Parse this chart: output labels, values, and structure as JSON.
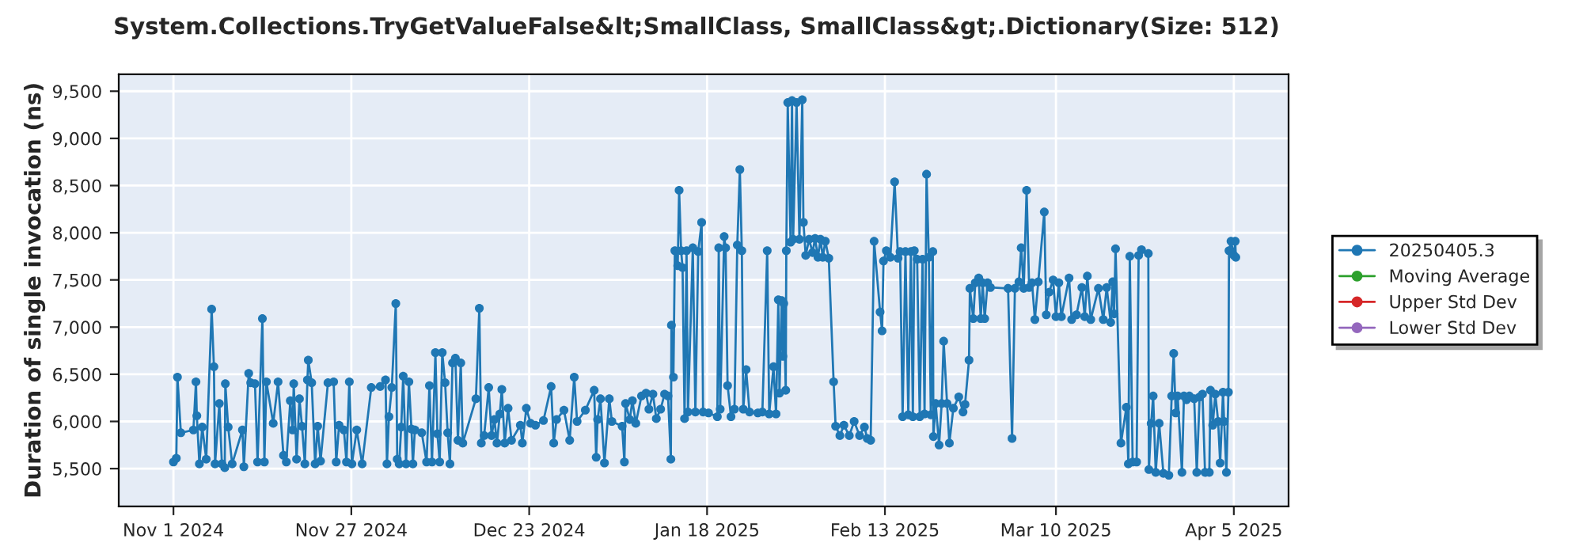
{
  "chart_data": {
    "type": "line",
    "title": "System.Collections.TryGetValueFalse&lt;SmallClass, SmallClass&gt;.Dictionary(Size: 512)",
    "ylabel": "Duration of single invocation (ns)",
    "x": [
      "2024-11-01T00:00",
      "2024-11-01T10:00",
      "2024-11-01T14:00",
      "2024-11-02T02:00",
      "2024-11-03T22:00",
      "2024-11-04T07:00",
      "2024-11-04T10:00",
      "2024-11-04T19:00",
      "2024-11-05T05:00",
      "2024-11-05T19:00",
      "2024-11-06T14:00",
      "2024-11-06T22:00",
      "2024-11-07T02:00",
      "2024-11-07T17:00",
      "2024-11-08T02:00",
      "2024-11-08T12:00",
      "2024-11-08T14:00",
      "2024-11-09T00:00",
      "2024-11-09T14:00",
      "2024-11-11T02:00",
      "2024-11-11T07:00",
      "2024-11-12T00:00",
      "2024-11-12T07:00",
      "2024-11-12T22:00",
      "2024-11-13T07:00",
      "2024-11-14T00:00",
      "2024-11-14T07:00",
      "2024-11-14T14:00",
      "2024-11-15T14:00",
      "2024-11-16T07:00",
      "2024-11-17T02:00",
      "2024-11-17T12:00",
      "2024-11-18T02:00",
      "2024-11-18T10:00",
      "2024-11-18T14:00",
      "2024-11-19T00:00",
      "2024-11-19T10:00",
      "2024-11-19T19:00",
      "2024-11-20T05:00",
      "2024-11-20T14:00",
      "2024-11-20T17:00",
      "2024-11-21T05:00",
      "2024-11-21T17:00",
      "2024-11-22T02:00",
      "2024-11-22T12:00",
      "2024-11-23T14:00",
      "2024-11-24T10:00",
      "2024-11-24T19:00",
      "2024-11-25T05:00",
      "2024-11-25T22:00",
      "2024-11-26T07:00",
      "2024-11-26T17:00",
      "2024-11-27T02:00",
      "2024-11-27T19:00",
      "2024-11-28T14:00",
      "2024-11-29T22:00",
      "2024-12-01T05:00",
      "2024-12-02T00:00",
      "2024-12-02T05:00",
      "2024-12-02T12:00",
      "2024-12-02T22:00",
      "2024-12-03T12:00",
      "2024-12-03T17:00",
      "2024-12-04T00:00",
      "2024-12-04T07:00",
      "2024-12-04T14:00",
      "2024-12-05T00:00",
      "2024-12-05T10:00",
      "2024-12-05T19:00",
      "2024-12-06T00:00",
      "2024-12-06T07:00",
      "2024-12-07T07:00",
      "2024-12-08T00:00",
      "2024-12-08T10:00",
      "2024-12-08T19:00",
      "2024-12-09T07:00",
      "2024-12-09T14:00",
      "2024-12-09T22:00",
      "2024-12-10T07:00",
      "2024-12-10T17:00",
      "2024-12-11T02:00",
      "2024-12-11T10:00",
      "2024-12-11T19:00",
      "2024-12-12T05:00",
      "2024-12-12T14:00",
      "2024-12-13T00:00",
      "2024-12-13T07:00",
      "2024-12-15T05:00",
      "2024-12-15T17:00",
      "2024-12-16T00:00",
      "2024-12-16T10:00",
      "2024-12-17T02:00",
      "2024-12-17T12:00",
      "2024-12-17T22:00",
      "2024-12-18T07:00",
      "2024-12-18T17:00",
      "2024-12-19T00:00",
      "2024-12-19T10:00",
      "2024-12-19T22:00",
      "2024-12-20T10:00",
      "2024-12-21T17:00",
      "2024-12-22T00:00",
      "2024-12-22T14:00",
      "2024-12-23T05:00",
      "2024-12-23T22:00",
      "2024-12-25T02:00",
      "2024-12-26T05:00",
      "2024-12-26T14:00",
      "2024-12-27T00:00",
      "2024-12-28T02:00",
      "2024-12-28T22:00",
      "2024-12-29T14:00",
      "2024-12-30T00:00",
      "2024-12-31T05:00",
      "2025-01-01T12:00",
      "2025-01-01T19:00",
      "2025-01-02T00:00",
      "2025-01-02T10:00",
      "2025-01-03T00:00",
      "2025-01-03T17:00",
      "2025-01-04T02:00",
      "2025-01-05T14:00",
      "2025-01-05T22:00",
      "2025-01-06T02:00",
      "2025-01-06T17:00",
      "2025-01-07T02:00",
      "2025-01-07T14:00",
      "2025-01-08T10:00",
      "2025-01-09T02:00",
      "2025-01-09T12:00",
      "2025-01-10T02:00",
      "2025-01-10T14:00",
      "2025-01-11T05:00",
      "2025-01-11T19:00",
      "2025-01-12T07:00",
      "2025-01-12T17:00",
      "2025-01-12T19:00",
      "2025-01-13T02:00",
      "2025-01-13T07:00",
      "2025-01-13T17:00",
      "2025-01-13T22:00",
      "2025-01-14T05:00",
      "2025-01-14T10:00",
      "2025-01-14T17:00",
      "2025-01-15T00:00",
      "2025-01-15T05:00",
      "2025-01-15T22:00",
      "2025-01-16T07:00",
      "2025-01-16T17:00",
      "2025-01-17T05:00",
      "2025-01-17T10:00",
      "2025-01-18T05:00",
      "2025-01-19T12:00",
      "2025-01-19T17:00",
      "2025-01-19T22:00",
      "2025-01-20T12:00",
      "2025-01-20T17:00",
      "2025-01-21T00:00",
      "2025-01-21T12:00",
      "2025-01-22T00:00",
      "2025-01-22T10:00",
      "2025-01-22T19:00",
      "2025-01-23T02:00",
      "2025-01-23T07:00",
      "2025-01-23T17:00",
      "2025-01-24T05:00",
      "2025-01-25T10:00",
      "2025-01-26T02:00",
      "2025-01-26T19:00",
      "2025-01-27T02:00",
      "2025-01-27T17:00",
      "2025-01-28T02:00",
      "2025-01-28T10:00",
      "2025-01-28T14:00",
      "2025-01-28T22:00",
      "2025-01-29T02:00",
      "2025-01-29T05:00",
      "2025-01-29T12:00",
      "2025-01-29T14:00",
      "2025-01-29T19:00",
      "2025-01-30T05:00",
      "2025-01-30T10:00",
      "2025-01-30T14:00",
      "2025-01-31T02:00",
      "2025-01-31T12:00",
      "2025-01-31T22:00",
      "2025-02-01T02:00",
      "2025-02-01T10:00",
      "2025-02-01T22:00",
      "2025-02-02T10:00",
      "2025-02-02T19:00",
      "2025-02-03T05:00",
      "2025-02-03T14:00",
      "2025-02-03T22:00",
      "2025-02-04T07:00",
      "2025-02-04T19:00",
      "2025-02-05T12:00",
      "2025-02-05T19:00",
      "2025-02-06T10:00",
      "2025-02-07T00:00",
      "2025-02-07T19:00",
      "2025-02-08T12:00",
      "2025-02-09T07:00",
      "2025-02-10T00:00",
      "2025-02-10T10:00",
      "2025-02-10T22:00",
      "2025-02-11T10:00",
      "2025-02-12T07:00",
      "2025-02-12T14:00",
      "2025-02-12T19:00",
      "2025-02-13T05:00",
      "2025-02-13T19:00",
      "2025-02-14T10:00",
      "2025-02-14T22:00",
      "2025-02-15T05:00",
      "2025-02-15T14:00",
      "2025-02-16T00:00",
      "2025-02-16T10:00",
      "2025-02-16T19:00",
      "2025-02-17T02:00",
      "2025-02-17T07:00",
      "2025-02-17T17:00",
      "2025-02-18T02:00",
      "2025-02-18T12:00",
      "2025-02-18T19:00",
      "2025-02-19T02:00",
      "2025-02-19T10:00",
      "2025-02-19T17:00",
      "2025-02-20T00:00",
      "2025-02-20T02:00",
      "2025-02-20T10:00",
      "2025-02-20T22:00",
      "2025-02-21T07:00",
      "2025-02-21T14:00",
      "2025-02-22T02:00",
      "2025-02-22T10:00",
      "2025-02-23T00:00",
      "2025-02-23T19:00",
      "2025-02-24T10:00",
      "2025-02-24T17:00",
      "2025-02-25T07:00",
      "2025-02-25T10:00",
      "2025-02-25T22:00",
      "2025-02-26T05:00",
      "2025-02-26T17:00",
      "2025-02-27T00:00",
      "2025-02-27T07:00",
      "2025-02-27T14:00",
      "2025-02-28T00:00",
      "2025-02-28T10:00",
      "2025-03-03T00:00",
      "2025-03-03T14:00",
      "2025-03-04T00:00",
      "2025-03-04T14:00",
      "2025-03-04T22:00",
      "2025-03-05T07:00",
      "2025-03-05T17:00",
      "2025-03-06T02:00",
      "2025-03-06T12:00",
      "2025-03-06T22:00",
      "2025-03-07T10:00",
      "2025-03-08T07:00",
      "2025-03-08T14:00",
      "2025-03-09T00:00",
      "2025-03-09T14:00",
      "2025-03-10T00:00",
      "2025-03-10T10:00",
      "2025-03-10T19:00",
      "2025-03-11T22:00",
      "2025-03-12T07:00",
      "2025-03-13T00:00",
      "2025-03-13T19:00",
      "2025-03-14T05:00",
      "2025-03-14T14:00",
      "2025-03-15T02:00",
      "2025-03-16T05:00",
      "2025-03-16T22:00",
      "2025-03-17T10:00",
      "2025-03-18T00:00",
      "2025-03-18T07:00",
      "2025-03-18T12:00",
      "2025-03-18T17:00",
      "2025-03-19T12:00",
      "2025-03-20T07:00",
      "2025-03-20T14:00",
      "2025-03-20T19:00",
      "2025-03-21T05:00",
      "2025-03-21T19:00",
      "2025-03-22T02:00",
      "2025-03-22T12:00",
      "2025-03-23T12:00",
      "2025-03-23T14:00",
      "2025-03-23T22:00",
      "2025-03-24T05:00",
      "2025-03-24T14:00",
      "2025-03-25T02:00",
      "2025-03-25T17:00",
      "2025-03-26T12:00",
      "2025-03-26T22:00",
      "2025-03-27T05:00",
      "2025-03-27T12:00",
      "2025-03-27T19:00",
      "2025-03-28T10:00",
      "2025-03-28T17:00",
      "2025-03-29T02:00",
      "2025-03-29T12:00",
      "2025-03-30T05:00",
      "2025-03-30T14:00",
      "2025-03-31T00:00",
      "2025-03-31T10:00",
      "2025-03-31T19:00",
      "2025-04-01T10:00",
      "2025-04-01T14:00",
      "2025-04-01T22:00",
      "2025-04-02T07:00",
      "2025-04-02T17:00",
      "2025-04-03T00:00",
      "2025-04-03T10:00",
      "2025-04-03T14:00",
      "2025-04-03T22:00",
      "2025-04-04T05:00",
      "2025-04-04T07:00",
      "2025-04-04T14:00",
      "2025-04-05T00:00",
      "2025-04-05T05:00",
      "2025-04-05T07:00"
    ],
    "series": [
      {
        "name": "20250405.3",
        "color": "#1f77b4",
        "values": [
          5570,
          5610,
          6470,
          5880,
          5910,
          6420,
          6060,
          5550,
          5940,
          5600,
          7190,
          6580,
          5550,
          6190,
          5550,
          5510,
          6400,
          5940,
          5550,
          5910,
          5520,
          6510,
          6410,
          6400,
          5570,
          7090,
          5570,
          6420,
          5980,
          6420,
          5640,
          5570,
          6220,
          5910,
          6400,
          5600,
          6240,
          5950,
          5550,
          6440,
          6650,
          6410,
          5550,
          5950,
          5580,
          6410,
          6420,
          5570,
          5960,
          5910,
          5570,
          6420,
          5550,
          5910,
          5550,
          6360,
          6370,
          6440,
          5550,
          6050,
          6360,
          7250,
          5600,
          5550,
          5940,
          6480,
          5550,
          6420,
          5920,
          5550,
          5910,
          5880,
          5570,
          6380,
          5570,
          6730,
          5870,
          5570,
          6730,
          6410,
          5880,
          5550,
          6620,
          6670,
          5800,
          6620,
          5770,
          6240,
          7200,
          5770,
          5850,
          6360,
          5850,
          6020,
          5770,
          6080,
          6340,
          5770,
          6140,
          5800,
          5960,
          5770,
          6140,
          5980,
          5960,
          6010,
          6370,
          5770,
          6020,
          6120,
          5800,
          6470,
          6000,
          6120,
          6330,
          5620,
          6020,
          6240,
          5560,
          6240,
          6000,
          5950,
          5570,
          6190,
          6020,
          6220,
          5980,
          6270,
          6300,
          6130,
          6290,
          6030,
          6130,
          6290,
          6270,
          5600,
          7020,
          6470,
          7810,
          7650,
          8450,
          7810,
          7630,
          6030,
          7810,
          6100,
          7840,
          6100,
          7800,
          8110,
          6100,
          6090,
          6050,
          7840,
          6130,
          7960,
          7840,
          6380,
          6050,
          6130,
          7870,
          8670,
          7810,
          6130,
          6550,
          6100,
          6090,
          6100,
          7810,
          6080,
          6580,
          6080,
          7290,
          6300,
          7280,
          6690,
          7250,
          6330,
          7810,
          9380,
          7900,
          9400,
          7930,
          9380,
          7930,
          9410,
          8110,
          7760,
          7930,
          7790,
          7940,
          7740,
          7930,
          7740,
          7910,
          7730,
          6420,
          5950,
          5850,
          5960,
          5850,
          6000,
          5850,
          5940,
          5820,
          5800,
          7910,
          7160,
          6960,
          7700,
          7810,
          7740,
          8540,
          7730,
          7800,
          6050,
          7800,
          6070,
          7800,
          6050,
          7810,
          7720,
          6050,
          7720,
          6080,
          8620,
          7740,
          6070,
          7800,
          5840,
          6190,
          5750,
          6190,
          6850,
          6190,
          5770,
          6140,
          6260,
          6100,
          6180,
          6650,
          7410,
          7090,
          7470,
          7520,
          7090,
          7470,
          7090,
          7470,
          7420,
          7410,
          5820,
          7410,
          7480,
          7840,
          7410,
          8450,
          7420,
          7470,
          7080,
          7480,
          8220,
          7130,
          7370,
          7500,
          7110,
          7470,
          7110,
          7520,
          7080,
          7130,
          7420,
          7110,
          7540,
          7080,
          7410,
          7080,
          7420,
          7050,
          7480,
          7140,
          7830,
          5770,
          6150,
          5550,
          7750,
          5570,
          5570,
          7760,
          7820,
          7780,
          5490,
          5980,
          6270,
          5460,
          5980,
          5450,
          5430,
          6270,
          6720,
          6090,
          6270,
          5460,
          6270,
          6230,
          6270,
          6240,
          5460,
          6260,
          6290,
          5460,
          5460,
          6330,
          5960,
          6290,
          6000,
          5560,
          6310,
          6000,
          5460,
          6310,
          7810,
          7910,
          7760,
          7910,
          7740
        ]
      },
      {
        "name": "Moving Average",
        "color": "#2ca02c",
        "values": [
          null,
          null,
          null,
          null,
          null,
          null,
          null,
          null,
          null,
          null,
          null,
          null,
          null,
          null,
          null,
          null,
          null,
          null,
          null,
          null,
          null,
          null,
          null,
          null,
          null,
          null,
          null,
          null,
          null,
          null,
          null,
          null,
          null,
          null,
          null,
          null,
          null,
          null,
          null,
          null,
          null,
          null,
          null,
          null,
          null,
          null,
          null,
          null,
          null,
          null,
          null,
          null,
          null,
          null,
          null,
          null,
          null,
          null,
          null,
          null,
          null,
          null,
          null,
          null,
          null,
          null,
          null,
          null,
          null,
          null,
          null,
          null,
          null,
          null,
          null,
          null,
          null,
          null,
          null,
          null,
          null,
          null,
          null,
          null,
          null,
          null,
          null,
          null,
          null,
          null,
          null,
          null,
          null,
          null,
          null,
          null,
          null,
          null,
          null,
          null,
          null,
          null,
          null,
          null,
          null,
          null,
          null,
          null,
          null,
          null,
          null,
          null,
          null,
          null,
          null,
          null,
          null,
          null,
          null,
          null,
          null,
          null,
          null,
          null,
          null,
          null,
          null,
          null,
          null,
          null,
          null,
          null,
          null,
          null,
          null,
          null,
          null,
          null,
          null,
          null,
          null,
          null,
          null,
          null,
          null,
          null,
          null,
          null,
          null,
          null,
          null,
          null,
          null,
          null,
          null,
          null,
          null,
          null,
          null,
          null,
          null,
          null,
          null,
          null,
          null,
          null,
          null,
          null,
          null,
          null,
          null,
          null,
          null,
          null,
          null,
          null,
          null,
          null,
          null,
          null,
          null,
          null,
          null,
          null,
          null,
          null,
          null,
          null,
          null,
          null,
          null,
          null,
          null,
          null,
          null,
          null,
          null,
          null,
          null,
          null,
          null,
          null,
          null,
          null,
          null,
          null,
          null,
          null,
          null,
          null,
          null,
          null,
          null,
          null,
          null,
          null,
          null,
          null,
          null,
          null,
          null,
          null,
          null,
          null,
          null,
          null,
          null,
          null,
          null,
          null,
          null,
          null,
          null,
          null,
          null,
          null,
          null,
          null,
          null,
          null,
          null,
          null,
          null,
          null,
          null,
          null,
          null,
          null,
          null,
          null,
          null,
          null,
          null,
          null,
          null,
          null,
          null,
          null,
          null,
          null,
          null,
          null,
          null,
          null,
          null,
          null,
          null,
          null,
          null,
          null,
          null,
          null,
          null,
          null,
          null,
          null,
          null,
          null,
          null,
          null,
          null,
          null,
          null,
          null,
          null,
          null,
          null,
          null,
          null,
          null,
          null,
          null,
          null,
          null,
          null,
          null,
          null,
          null,
          null,
          null,
          null,
          null,
          null,
          null,
          null,
          null,
          null,
          null,
          null,
          null,
          null,
          null,
          null,
          null,
          null,
          null,
          null,
          null,
          null,
          null,
          null,
          null,
          null,
          null,
          null,
          null
        ]
      },
      {
        "name": "Upper Std Dev",
        "color": "#d62728",
        "values": [
          null,
          null,
          null,
          null,
          null,
          null,
          null,
          null,
          null,
          null,
          null,
          null,
          null,
          null,
          null,
          null,
          null,
          null,
          null,
          null,
          null,
          null,
          null,
          null,
          null,
          null,
          null,
          null,
          null,
          null,
          null,
          null,
          null,
          null,
          null,
          null,
          null,
          null,
          null,
          null,
          null,
          null,
          null,
          null,
          null,
          null,
          null,
          null,
          null,
          null,
          null,
          null,
          null,
          null,
          null,
          null,
          null,
          null,
          null,
          null,
          null,
          null,
          null,
          null,
          null,
          null,
          null,
          null,
          null,
          null,
          null,
          null,
          null,
          null,
          null,
          null,
          null,
          null,
          null,
          null,
          null,
          null,
          null,
          null,
          null,
          null,
          null,
          null,
          null,
          null,
          null,
          null,
          null,
          null,
          null,
          null,
          null,
          null,
          null,
          null,
          null,
          null,
          null,
          null,
          null,
          null,
          null,
          null,
          null,
          null,
          null,
          null,
          null,
          null,
          null,
          null,
          null,
          null,
          null,
          null,
          null,
          null,
          null,
          null,
          null,
          null,
          null,
          null,
          null,
          null,
          null,
          null,
          null,
          null,
          null,
          null,
          null,
          null,
          null,
          null,
          null,
          null,
          null,
          null,
          null,
          null,
          null,
          null,
          null,
          null,
          null,
          null,
          null,
          null,
          null,
          null,
          null,
          null,
          null,
          null,
          null,
          null,
          null,
          null,
          null,
          null,
          null,
          null,
          null,
          null,
          null,
          null,
          null,
          null,
          null,
          null,
          null,
          null,
          null,
          null,
          null,
          null,
          null,
          null,
          null,
          null,
          null,
          null,
          null,
          null,
          null,
          null,
          null,
          null,
          null,
          null,
          null,
          null,
          null,
          null,
          null,
          null,
          null,
          null,
          null,
          null,
          null,
          null,
          null,
          null,
          null,
          null,
          null,
          null,
          null,
          null,
          null,
          null,
          null,
          null,
          null,
          null,
          null,
          null,
          null,
          null,
          null,
          null,
          null,
          null,
          null,
          null,
          null,
          null,
          null,
          null,
          null,
          null,
          null,
          null,
          null,
          null,
          null,
          null,
          null,
          null,
          null,
          null,
          null,
          null,
          null,
          null,
          null,
          null,
          null,
          null,
          null,
          null,
          null,
          null,
          null,
          null,
          null,
          null,
          null,
          null,
          null,
          null,
          null,
          null,
          null,
          null,
          null,
          null,
          null,
          null,
          null,
          null,
          null,
          null,
          null,
          null,
          null,
          null,
          null,
          null,
          null,
          null,
          null,
          null,
          null,
          null,
          null,
          null,
          null,
          null,
          null,
          null,
          null,
          null,
          null,
          null,
          null,
          null,
          null,
          null,
          null,
          null,
          null,
          null,
          null,
          null,
          null,
          null,
          null,
          null,
          null,
          null,
          null,
          null,
          null,
          null,
          null,
          null,
          null,
          null
        ]
      },
      {
        "name": "Lower Std Dev",
        "color": "#9467bd",
        "values": [
          null,
          null,
          null,
          null,
          null,
          null,
          null,
          null,
          null,
          null,
          null,
          null,
          null,
          null,
          null,
          null,
          null,
          null,
          null,
          null,
          null,
          null,
          null,
          null,
          null,
          null,
          null,
          null,
          null,
          null,
          null,
          null,
          null,
          null,
          null,
          null,
          null,
          null,
          null,
          null,
          null,
          null,
          null,
          null,
          null,
          null,
          null,
          null,
          null,
          null,
          null,
          null,
          null,
          null,
          null,
          null,
          null,
          null,
          null,
          null,
          null,
          null,
          null,
          null,
          null,
          null,
          null,
          null,
          null,
          null,
          null,
          null,
          null,
          null,
          null,
          null,
          null,
          null,
          null,
          null,
          null,
          null,
          null,
          null,
          null,
          null,
          null,
          null,
          null,
          null,
          null,
          null,
          null,
          null,
          null,
          null,
          null,
          null,
          null,
          null,
          null,
          null,
          null,
          null,
          null,
          null,
          null,
          null,
          null,
          null,
          null,
          null,
          null,
          null,
          null,
          null,
          null,
          null,
          null,
          null,
          null,
          null,
          null,
          null,
          null,
          null,
          null,
          null,
          null,
          null,
          null,
          null,
          null,
          null,
          null,
          null,
          null,
          null,
          null,
          null,
          null,
          null,
          null,
          null,
          null,
          null,
          null,
          null,
          null,
          null,
          null,
          null,
          null,
          null,
          null,
          null,
          null,
          null,
          null,
          null,
          null,
          null,
          null,
          null,
          null,
          null,
          null,
          null,
          null,
          null,
          null,
          null,
          null,
          null,
          null,
          null,
          null,
          null,
          null,
          null,
          null,
          null,
          null,
          null,
          null,
          null,
          null,
          null,
          null,
          null,
          null,
          null,
          null,
          null,
          null,
          null,
          null,
          null,
          null,
          null,
          null,
          null,
          null,
          null,
          null,
          null,
          null,
          null,
          null,
          null,
          null,
          null,
          null,
          null,
          null,
          null,
          null,
          null,
          null,
          null,
          null,
          null,
          null,
          null,
          null,
          null,
          null,
          null,
          null,
          null,
          null,
          null,
          null,
          null,
          null,
          null,
          null,
          null,
          null,
          null,
          null,
          null,
          null,
          null,
          null,
          null,
          null,
          null,
          null,
          null,
          null,
          null,
          null,
          null,
          null,
          null,
          null,
          null,
          null,
          null,
          null,
          null,
          null,
          null,
          null,
          null,
          null,
          null,
          null,
          null,
          null,
          null,
          null,
          null,
          null,
          null,
          null,
          null,
          null,
          null,
          null,
          null,
          null,
          null,
          null,
          null,
          null,
          null,
          null,
          null,
          null,
          null,
          null,
          null,
          null,
          null,
          null,
          null,
          null,
          null,
          null,
          null,
          null,
          null,
          null,
          null,
          null,
          null,
          null,
          null,
          null,
          null,
          null,
          null,
          null,
          null,
          null,
          null,
          null,
          null,
          null,
          null,
          null,
          null,
          null,
          null
        ]
      }
    ],
    "xlim": [
      "2024-10-24",
      "2025-04-13"
    ],
    "xticks": [
      {
        "value": "2024-11-01",
        "label": "Nov 1 2024"
      },
      {
        "value": "2024-11-27",
        "label": "Nov 27 2024"
      },
      {
        "value": "2024-12-23",
        "label": "Dec 23 2024"
      },
      {
        "value": "2025-01-18",
        "label": "Jan 18 2025"
      },
      {
        "value": "2025-02-13",
        "label": "Feb 13 2025"
      },
      {
        "value": "2025-03-10",
        "label": "Mar 10 2025"
      },
      {
        "value": "2025-04-05",
        "label": "Apr 5 2025"
      }
    ],
    "ylim": [
      5100,
      9680
    ],
    "yticks": [
      {
        "value": 5500,
        "label": "5,500"
      },
      {
        "value": 6000,
        "label": "6,000"
      },
      {
        "value": 6500,
        "label": "6,500"
      },
      {
        "value": 7000,
        "label": "7,000"
      },
      {
        "value": 7500,
        "label": "7,500"
      },
      {
        "value": 8000,
        "label": "8,000"
      },
      {
        "value": 8500,
        "label": "8,500"
      },
      {
        "value": 9000,
        "label": "9,000"
      },
      {
        "value": 9500,
        "label": "9,500"
      }
    ],
    "grid": true,
    "legend": "right",
    "marker": "circle",
    "line_style": "solid"
  }
}
